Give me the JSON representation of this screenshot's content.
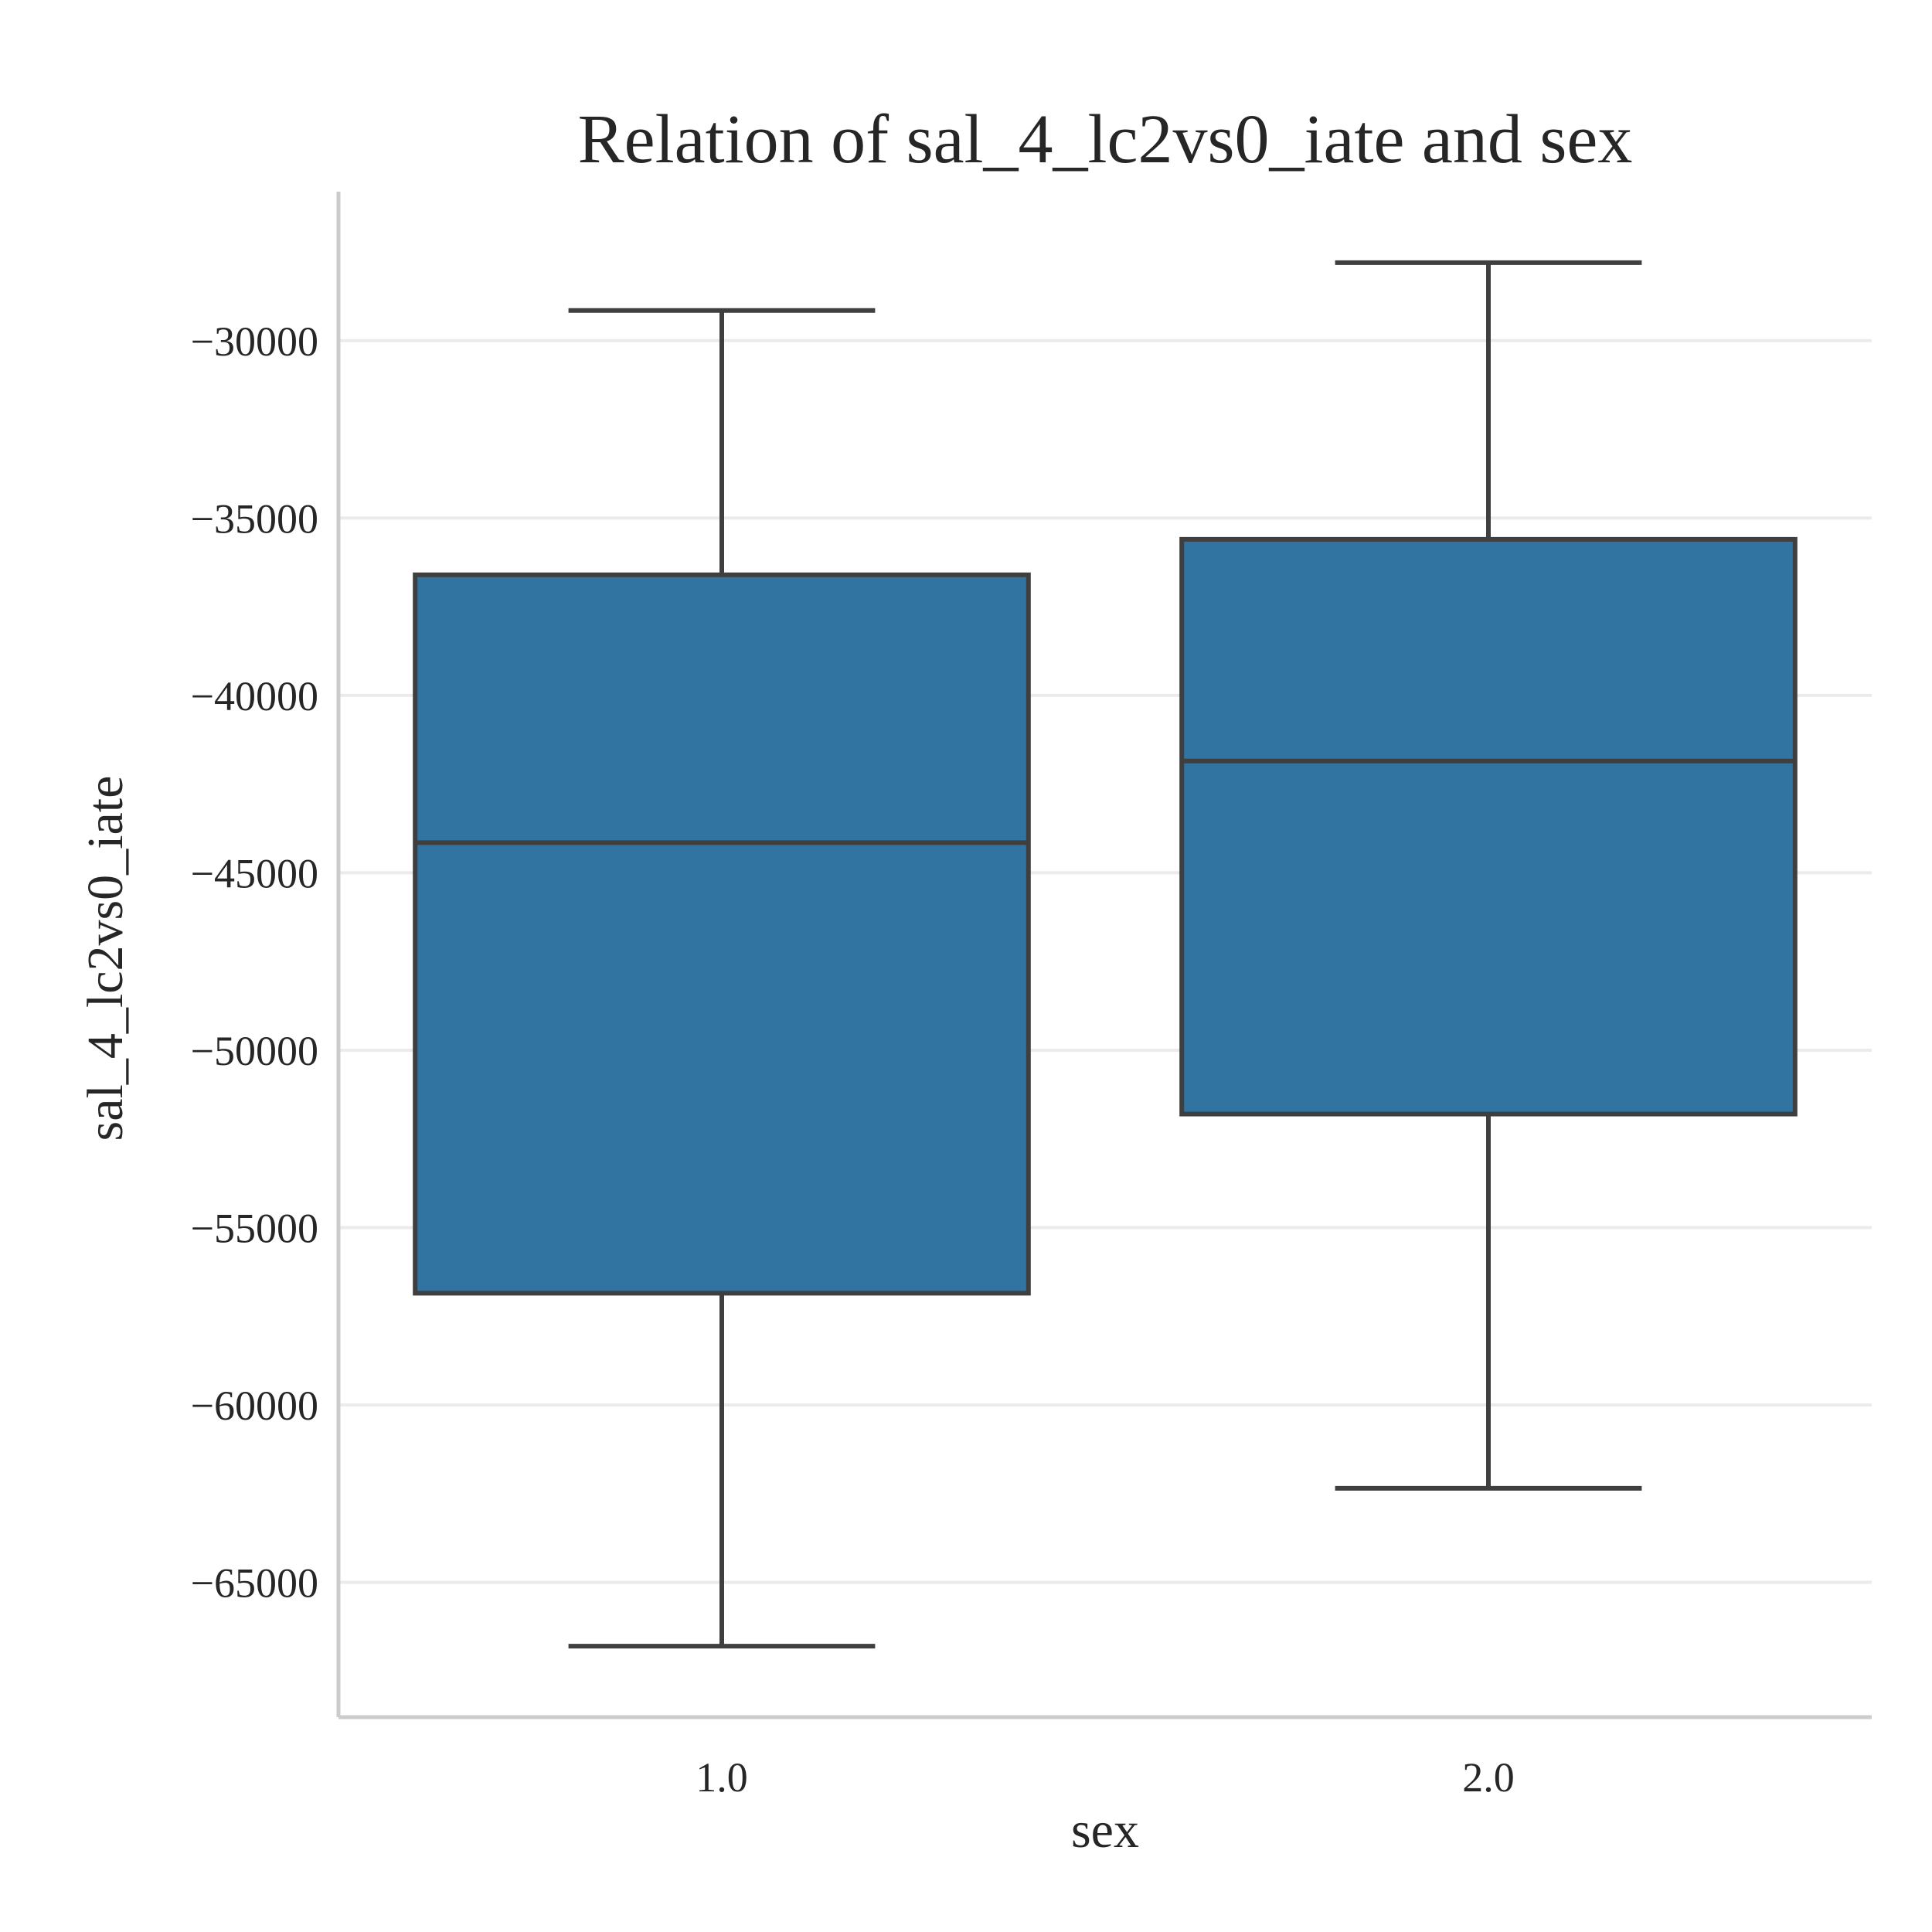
{
  "chart_data": {
    "type": "box",
    "title": "Relation of sal_4_lc2vs0_iate and sex",
    "xlabel": "sex",
    "ylabel": "sal_4_lc2vs0_iate",
    "categories": [
      "1.0",
      "2.0"
    ],
    "boxes": [
      {
        "category": "1.0",
        "whisker_low": -66800,
        "q1": -56850,
        "median": -44150,
        "q3": -36600,
        "whisker_high": -29150
      },
      {
        "category": "2.0",
        "whisker_low": -62350,
        "q1": -51800,
        "median": -41850,
        "q3": -35600,
        "whisker_high": -27800
      }
    ],
    "ylim": [
      -68800,
      -25800
    ],
    "yticks": [
      -30000,
      -35000,
      -40000,
      -45000,
      -50000,
      -55000,
      -60000,
      -65000
    ],
    "ytick_labels": [
      "−30000",
      "−35000",
      "−40000",
      "−45000",
      "−50000",
      "−55000",
      "−60000",
      "−65000"
    ],
    "grid": "horizontal",
    "colors": {
      "box_fill": "#3274a1",
      "box_edge": "#3f3f3f",
      "grid": "#ebebeb",
      "spine": "#cccccc",
      "text": "#262626"
    }
  }
}
